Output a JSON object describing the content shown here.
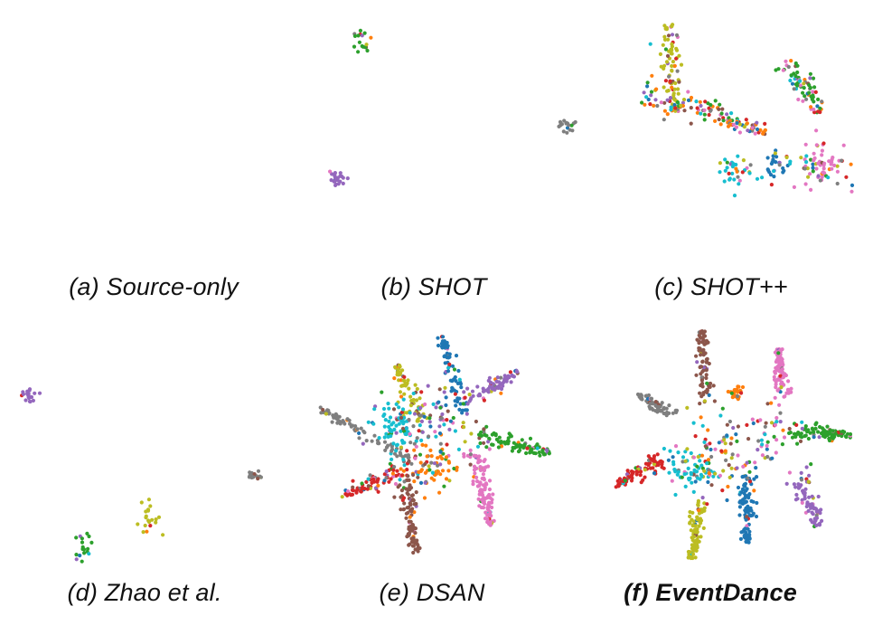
{
  "palette": {
    "blue": "#1f77b4",
    "orange": "#ff7f0e",
    "green": "#2ca02c",
    "red": "#d62728",
    "purple": "#9467bd",
    "brown": "#8c564b",
    "pink": "#e377c2",
    "gray": "#7f7f7f",
    "olive": "#bcbd22",
    "cyan": "#17becf"
  },
  "chart_data": [
    {
      "type": "scatter",
      "caption": "(a) Source-only",
      "emphasis": false,
      "mode": "mixed"
    },
    {
      "type": "scatter",
      "caption": "(b) SHOT",
      "emphasis": false,
      "mode": "mixed"
    },
    {
      "type": "scatter",
      "caption": "(c) SHOT++",
      "emphasis": false,
      "mode": "partial"
    },
    {
      "type": "scatter",
      "caption": "(d) Zhao et al.",
      "emphasis": false,
      "mode": "mixed"
    },
    {
      "type": "scatter",
      "caption": "(e) DSAN",
      "emphasis": false,
      "mode": "clustered"
    },
    {
      "type": "scatter",
      "caption": "(f) EventDance",
      "emphasis": true,
      "mode": "clustered"
    }
  ]
}
